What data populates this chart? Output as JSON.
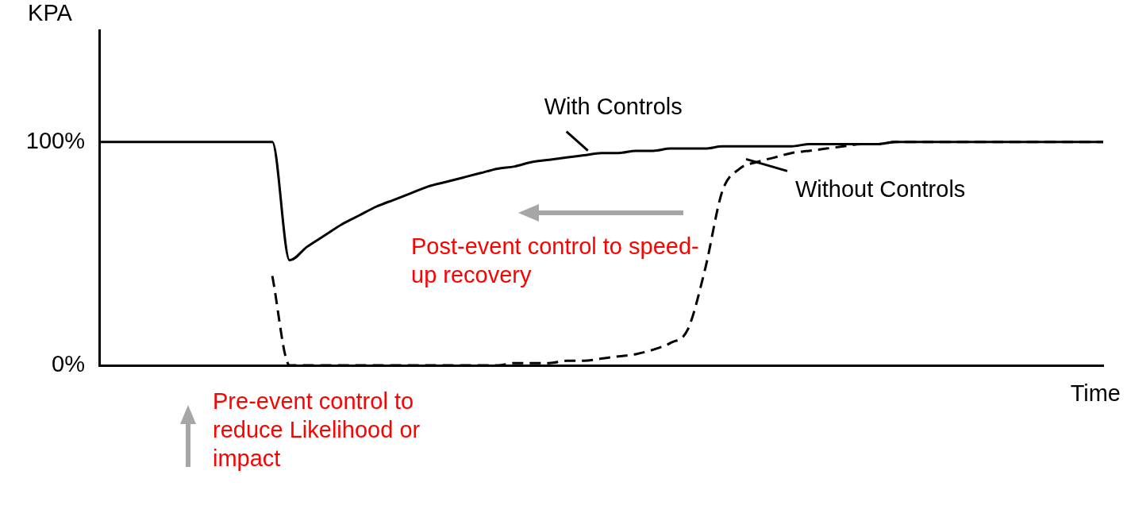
{
  "chart_data": {
    "type": "line",
    "xlabel": "Time",
    "ylabel": "KPA",
    "categories": [
      null,
      null,
      null,
      null,
      null,
      null,
      null,
      null,
      null,
      null,
      null,
      null,
      null,
      null,
      null,
      null,
      null,
      null,
      null,
      null,
      null,
      null,
      null,
      null,
      null,
      null,
      null,
      null,
      null,
      null,
      null,
      null,
      null,
      null,
      null,
      null,
      null,
      null,
      null,
      null,
      null,
      null,
      null,
      null,
      null,
      null,
      null,
      null,
      null,
      null,
      null,
      null,
      null,
      null,
      null,
      null,
      null,
      null,
      null
    ],
    "series": [
      {
        "name": "With Controls",
        "color": "#000000",
        "line_style": "solid",
        "values": [
          100,
          100,
          100,
          100,
          100,
          100,
          100,
          100,
          100,
          100,
          100,
          47,
          53,
          58,
          63,
          67,
          71,
          74,
          77,
          80,
          82,
          84,
          86,
          88,
          89,
          91,
          92,
          93,
          94,
          95,
          95,
          96,
          96,
          97,
          97,
          97,
          98,
          98,
          98,
          98,
          98,
          99,
          99,
          99,
          99,
          99,
          100,
          100,
          100,
          100,
          100,
          100,
          100,
          100,
          100,
          100,
          100,
          100,
          100
        ]
      },
      {
        "name": "Without Controls",
        "color": "#000000",
        "line_style": "dashed",
        "values": [
          null,
          null,
          null,
          null,
          null,
          null,
          null,
          null,
          null,
          null,
          40,
          0,
          0,
          0,
          0,
          0,
          0,
          0,
          0,
          0,
          0,
          0,
          0,
          0,
          1,
          1,
          1,
          2,
          2,
          3,
          4,
          5,
          7,
          10,
          16,
          43,
          78,
          88,
          91,
          93,
          95,
          96,
          97,
          98,
          99,
          99,
          100,
          100,
          100,
          100,
          100,
          100,
          100,
          100,
          100,
          100,
          100,
          100,
          100
        ]
      }
    ],
    "ylim": [
      0,
      150
    ],
    "yticks": [
      {
        "value": 0,
        "label": "0%"
      },
      {
        "value": 100,
        "label": "100%"
      }
    ],
    "tick_labels": "y",
    "grid": false,
    "legend": false,
    "marker": "none",
    "annotations": [
      "Post-event control to speed-up recovery",
      "Pre-event control to reduce Likelihood or impact"
    ]
  }
}
